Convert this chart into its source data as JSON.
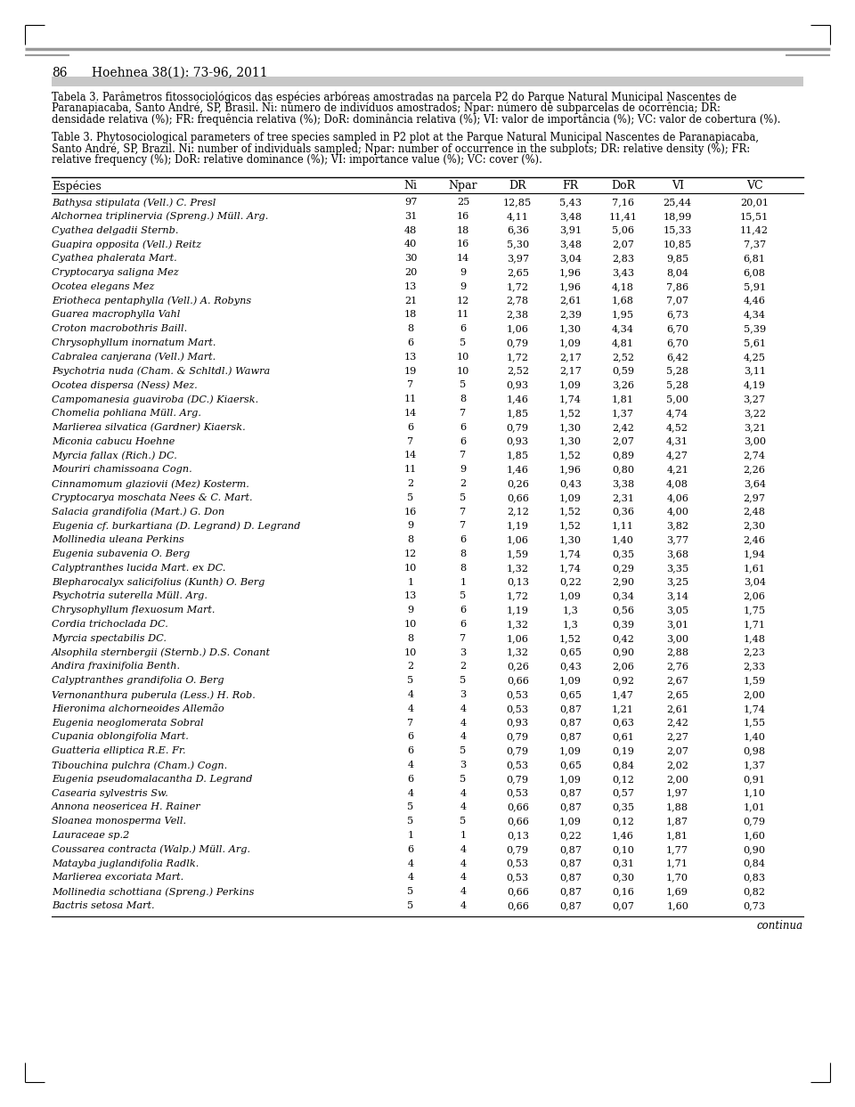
{
  "page_num": "86",
  "journal": "Hoehnea 38(1): 73-96, 2011",
  "caption_pt_lines": [
    "Tabela 3. Parâmetros fitossociológicos das espécies arbóreas amostradas na parcela P2 do Parque Natural Municipal Nascentes de",
    "Paranapiacaba, Santo André, SP, Brasil. Ni: número de indivíduos amostrados; Npar: número de subparcelas de ocorrência; DR:",
    "densidade relativa (%); FR: frequência relativa (%); DoR: dominância relativa (%); VI: valor de importância (%); VC: valor de cobertura (%)."
  ],
  "caption_en_lines": [
    "Table 3. Phytosociological parameters of tree species sampled in P2 plot at the Parque Natural Municipal Nascentes de Paranapiacaba,",
    "Santo André, SP, Brazil. Ni: number of individuals sampled; Npar: number of occurrence in the subplots; DR: relative density (%); FR:",
    "relative frequency (%); DoR: relative dominance (%); VI: importance value (%); VC: cover (%)."
  ],
  "col_headers": [
    "Espécies",
    "Ni",
    "Npar",
    "DR",
    "FR",
    "DoR",
    "VI",
    "VC"
  ],
  "rows": [
    [
      "Bathysa stipulata (Vell.) C. Presl",
      "97",
      "25",
      "12,85",
      "5,43",
      "7,16",
      "25,44",
      "20,01"
    ],
    [
      "Alchornea triplinervia (Spreng.) Müll. Arg.",
      "31",
      "16",
      "4,11",
      "3,48",
      "11,41",
      "18,99",
      "15,51"
    ],
    [
      "Cyathea delgadii Sternb.",
      "48",
      "18",
      "6,36",
      "3,91",
      "5,06",
      "15,33",
      "11,42"
    ],
    [
      "Guapira opposita (Vell.) Reitz",
      "40",
      "16",
      "5,30",
      "3,48",
      "2,07",
      "10,85",
      "7,37"
    ],
    [
      "Cyathea phalerata Mart.",
      "30",
      "14",
      "3,97",
      "3,04",
      "2,83",
      "9,85",
      "6,81"
    ],
    [
      "Cryptocarya saligna Mez",
      "20",
      "9",
      "2,65",
      "1,96",
      "3,43",
      "8,04",
      "6,08"
    ],
    [
      "Ocotea elegans Mez",
      "13",
      "9",
      "1,72",
      "1,96",
      "4,18",
      "7,86",
      "5,91"
    ],
    [
      "Eriotheca pentaphylla (Vell.) A. Robyns",
      "21",
      "12",
      "2,78",
      "2,61",
      "1,68",
      "7,07",
      "4,46"
    ],
    [
      "Guarea macrophylla Vahl",
      "18",
      "11",
      "2,38",
      "2,39",
      "1,95",
      "6,73",
      "4,34"
    ],
    [
      "Croton macrobothris Baill.",
      "8",
      "6",
      "1,06",
      "1,30",
      "4,34",
      "6,70",
      "5,39"
    ],
    [
      "Chrysophyllum inornatum Mart.",
      "6",
      "5",
      "0,79",
      "1,09",
      "4,81",
      "6,70",
      "5,61"
    ],
    [
      "Cabralea canjerana (Vell.) Mart.",
      "13",
      "10",
      "1,72",
      "2,17",
      "2,52",
      "6,42",
      "4,25"
    ],
    [
      "Psychotria nuda (Cham. & Schltdl.) Wawra",
      "19",
      "10",
      "2,52",
      "2,17",
      "0,59",
      "5,28",
      "3,11"
    ],
    [
      "Ocotea dispersa (Ness) Mez.",
      "7",
      "5",
      "0,93",
      "1,09",
      "3,26",
      "5,28",
      "4,19"
    ],
    [
      "Campomanesia guaviroba (DC.) Kiaersk.",
      "11",
      "8",
      "1,46",
      "1,74",
      "1,81",
      "5,00",
      "3,27"
    ],
    [
      "Chomelia pohliana Müll. Arg.",
      "14",
      "7",
      "1,85",
      "1,52",
      "1,37",
      "4,74",
      "3,22"
    ],
    [
      "Marlierea silvatica (Gardner) Kiaersk.",
      "6",
      "6",
      "0,79",
      "1,30",
      "2,42",
      "4,52",
      "3,21"
    ],
    [
      "Miconia cabucu Hoehne",
      "7",
      "6",
      "0,93",
      "1,30",
      "2,07",
      "4,31",
      "3,00"
    ],
    [
      "Myrcia fallax (Rich.) DC.",
      "14",
      "7",
      "1,85",
      "1,52",
      "0,89",
      "4,27",
      "2,74"
    ],
    [
      "Mouriri chamissoana Cogn.",
      "11",
      "9",
      "1,46",
      "1,96",
      "0,80",
      "4,21",
      "2,26"
    ],
    [
      "Cinnamomum glaziovii (Mez) Kosterm.",
      "2",
      "2",
      "0,26",
      "0,43",
      "3,38",
      "4,08",
      "3,64"
    ],
    [
      "Cryptocarya moschata Nees & C. Mart.",
      "5",
      "5",
      "0,66",
      "1,09",
      "2,31",
      "4,06",
      "2,97"
    ],
    [
      "Salacia grandifolia (Mart.) G. Don",
      "16",
      "7",
      "2,12",
      "1,52",
      "0,36",
      "4,00",
      "2,48"
    ],
    [
      "Eugenia cf. burkartiana (D. Legrand) D. Legrand",
      "9",
      "7",
      "1,19",
      "1,52",
      "1,11",
      "3,82",
      "2,30"
    ],
    [
      "Mollinedia uleana Perkins",
      "8",
      "6",
      "1,06",
      "1,30",
      "1,40",
      "3,77",
      "2,46"
    ],
    [
      "Eugenia subavenia O. Berg",
      "12",
      "8",
      "1,59",
      "1,74",
      "0,35",
      "3,68",
      "1,94"
    ],
    [
      "Calyptranthes lucida Mart. ex DC.",
      "10",
      "8",
      "1,32",
      "1,74",
      "0,29",
      "3,35",
      "1,61"
    ],
    [
      "Blepharocalyx salicifolius (Kunth) O. Berg",
      "1",
      "1",
      "0,13",
      "0,22",
      "2,90",
      "3,25",
      "3,04"
    ],
    [
      "Psychotria suterella Müll. Arg.",
      "13",
      "5",
      "1,72",
      "1,09",
      "0,34",
      "3,14",
      "2,06"
    ],
    [
      "Chrysophyllum flexuosum Mart.",
      "9",
      "6",
      "1,19",
      "1,3",
      "0,56",
      "3,05",
      "1,75"
    ],
    [
      "Cordia trichoclada DC.",
      "10",
      "6",
      "1,32",
      "1,3",
      "0,39",
      "3,01",
      "1,71"
    ],
    [
      "Myrcia spectabilis DC.",
      "8",
      "7",
      "1,06",
      "1,52",
      "0,42",
      "3,00",
      "1,48"
    ],
    [
      "Alsophila sternbergii (Sternb.) D.S. Conant",
      "10",
      "3",
      "1,32",
      "0,65",
      "0,90",
      "2,88",
      "2,23"
    ],
    [
      "Andira fraxinifolia Benth.",
      "2",
      "2",
      "0,26",
      "0,43",
      "2,06",
      "2,76",
      "2,33"
    ],
    [
      "Calyptranthes grandifolia O. Berg",
      "5",
      "5",
      "0,66",
      "1,09",
      "0,92",
      "2,67",
      "1,59"
    ],
    [
      "Vernonanthura puberula (Less.) H. Rob.",
      "4",
      "3",
      "0,53",
      "0,65",
      "1,47",
      "2,65",
      "2,00"
    ],
    [
      "Hieronima alchorneoides Allemão",
      "4",
      "4",
      "0,53",
      "0,87",
      "1,21",
      "2,61",
      "1,74"
    ],
    [
      "Eugenia neoglomerata Sobral",
      "7",
      "4",
      "0,93",
      "0,87",
      "0,63",
      "2,42",
      "1,55"
    ],
    [
      "Cupania oblongifolia Mart.",
      "6",
      "4",
      "0,79",
      "0,87",
      "0,61",
      "2,27",
      "1,40"
    ],
    [
      "Guatteria elliptica R.E. Fr.",
      "6",
      "5",
      "0,79",
      "1,09",
      "0,19",
      "2,07",
      "0,98"
    ],
    [
      "Tibouchina pulchra (Cham.) Cogn.",
      "4",
      "3",
      "0,53",
      "0,65",
      "0,84",
      "2,02",
      "1,37"
    ],
    [
      "Eugenia pseudomalacantha D. Legrand",
      "6",
      "5",
      "0,79",
      "1,09",
      "0,12",
      "2,00",
      "0,91"
    ],
    [
      "Casearia sylvestris Sw.",
      "4",
      "4",
      "0,53",
      "0,87",
      "0,57",
      "1,97",
      "1,10"
    ],
    [
      "Annona neosericea H. Rainer",
      "5",
      "4",
      "0,66",
      "0,87",
      "0,35",
      "1,88",
      "1,01"
    ],
    [
      "Sloanea monosperma Vell.",
      "5",
      "5",
      "0,66",
      "1,09",
      "0,12",
      "1,87",
      "0,79"
    ],
    [
      "Lauraceae sp.2",
      "1",
      "1",
      "0,13",
      "0,22",
      "1,46",
      "1,81",
      "1,60"
    ],
    [
      "Coussarea contracta (Walp.) Müll. Arg.",
      "6",
      "4",
      "0,79",
      "0,87",
      "0,10",
      "1,77",
      "0,90"
    ],
    [
      "Matayba juglandifolia Radlk.",
      "4",
      "4",
      "0,53",
      "0,87",
      "0,31",
      "1,71",
      "0,84"
    ],
    [
      "Marlierea excoriata Mart.",
      "4",
      "4",
      "0,53",
      "0,87",
      "0,30",
      "1,70",
      "0,83"
    ],
    [
      "Mollinedia schottiana (Spreng.) Perkins",
      "5",
      "4",
      "0,66",
      "0,87",
      "0,16",
      "1,69",
      "0,82"
    ],
    [
      "Bactris setosa Mart.",
      "5",
      "4",
      "0,66",
      "0,87",
      "0,07",
      "1,60",
      "0,73"
    ]
  ],
  "footer": "continua",
  "bg_color": "#ffffff",
  "text_color": "#000000"
}
